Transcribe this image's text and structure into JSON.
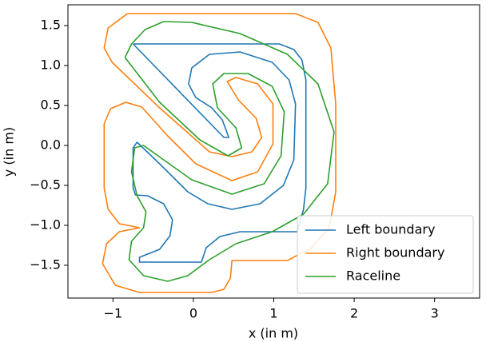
{
  "chart_data": {
    "type": "line",
    "xlabel": "x (in m)",
    "ylabel": "y (in m)",
    "xlim": [
      -1.56,
      3.56
    ],
    "ylim": [
      -1.91,
      1.76
    ],
    "xticks": [
      {
        "value": -1,
        "label": "−1"
      },
      0,
      1,
      2,
      3
    ],
    "yticks": [
      {
        "value": -1.5,
        "label": "−1.5"
      },
      {
        "value": -1,
        "label": "−1.0"
      },
      {
        "value": -0.5,
        "label": "−0.5"
      },
      {
        "value": 0,
        "label": "0.0"
      },
      {
        "value": 0.5,
        "label": "0.5"
      },
      {
        "value": 1,
        "label": "1.0"
      },
      {
        "value": 1.5,
        "label": "1.5"
      }
    ],
    "grid": false,
    "legend": "lower right",
    "series": [
      {
        "name": "Left boundary",
        "color": "#1f77b4",
        "x": [
          -0.75,
          1.07,
          1.25,
          1.35,
          1.4,
          1.4,
          1.37,
          1.29,
          0.58,
          0.33,
          0.16,
          0.1,
          -0.67,
          -0.67,
          -0.42,
          -0.29,
          -0.26,
          -0.37,
          -0.57,
          -0.72,
          -0.75,
          -0.75,
          -0.7,
          -0.42,
          -0.07,
          0.18,
          0.48,
          0.83,
          1.12,
          1.25,
          1.27,
          1.19,
          0.98,
          0.58,
          0.2,
          -0.02,
          -0.06,
          0.03,
          0.23,
          0.36,
          0.44,
          0.38,
          -0.75
        ],
        "values": [
          1.27,
          1.27,
          1.2,
          1.07,
          0.82,
          -0.53,
          -0.8,
          -1.08,
          -1.08,
          -1.14,
          -1.28,
          -1.46,
          -1.46,
          -1.4,
          -1.3,
          -1.13,
          -0.93,
          -0.73,
          -0.63,
          -0.62,
          -0.53,
          -0.03,
          0.04,
          -0.23,
          -0.58,
          -0.73,
          -0.8,
          -0.73,
          -0.5,
          -0.18,
          0.52,
          0.82,
          1.04,
          1.17,
          1.14,
          0.97,
          0.77,
          0.6,
          0.47,
          0.32,
          0.1,
          0.1,
          1.27
        ]
      },
      {
        "name": "Right boundary",
        "color": "#ff7f0e",
        "x": [
          -0.82,
          1.27,
          1.55,
          1.71,
          1.77,
          1.77,
          1.69,
          1.47,
          1.17,
          0.48,
          0.46,
          0.38,
          0.23,
          -0.67,
          -0.97,
          -1.13,
          -1.08,
          -0.92,
          -0.67,
          -0.92,
          -1.06,
          -1.11,
          -1.11,
          -1.03,
          -0.84,
          -0.64,
          -0.32,
          0.03,
          0.48,
          0.8,
          0.99,
          0.99,
          0.8,
          0.53,
          0.42,
          0.56,
          0.78,
          0.85,
          0.73,
          0.48,
          0.2,
          -0.42,
          -1.01,
          -1.11,
          -1.06,
          -0.82
        ],
        "values": [
          1.65,
          1.65,
          1.54,
          1.22,
          0.52,
          -0.58,
          -1.03,
          -1.28,
          -1.44,
          -1.44,
          -1.66,
          -1.8,
          -1.84,
          -1.84,
          -1.75,
          -1.48,
          -1.23,
          -1.08,
          -1.03,
          -0.98,
          -0.8,
          -0.53,
          0.27,
          0.46,
          0.54,
          0.48,
          0.12,
          -0.23,
          -0.44,
          -0.33,
          0.02,
          0.52,
          0.77,
          0.85,
          0.8,
          0.57,
          0.34,
          0.1,
          -0.08,
          -0.14,
          -0.08,
          0.47,
          1.04,
          1.22,
          1.47,
          1.65
        ]
      },
      {
        "name": "Raceline",
        "color": "#2ca02c",
        "x": [
          -0.85,
          -0.77,
          -0.6,
          -0.37,
          -0.02,
          0.58,
          1.17,
          1.55,
          1.75,
          1.67,
          1.37,
          0.98,
          0.53,
          0.2,
          -0.07,
          -0.32,
          -0.62,
          -0.8,
          -0.77,
          -0.62,
          -0.59,
          -0.7,
          -0.77,
          -0.73,
          -0.62,
          -0.37,
          -0.02,
          0.48,
          0.88,
          1.09,
          1.13,
          0.98,
          0.68,
          0.38,
          0.24,
          0.3,
          0.53,
          0.6,
          0.43,
          0.08,
          -0.42,
          -0.85
        ],
        "values": [
          1.1,
          1.27,
          1.45,
          1.55,
          1.54,
          1.4,
          1.14,
          0.77,
          0.17,
          -0.48,
          -0.86,
          -1.08,
          -1.23,
          -1.43,
          -1.63,
          -1.7,
          -1.63,
          -1.43,
          -1.2,
          -1.03,
          -0.83,
          -0.63,
          -0.33,
          -0.03,
          0.0,
          -0.18,
          -0.43,
          -0.61,
          -0.48,
          -0.13,
          0.42,
          0.74,
          0.9,
          0.9,
          0.77,
          0.47,
          0.22,
          -0.03,
          -0.13,
          0.07,
          0.54,
          1.1
        ]
      }
    ]
  }
}
